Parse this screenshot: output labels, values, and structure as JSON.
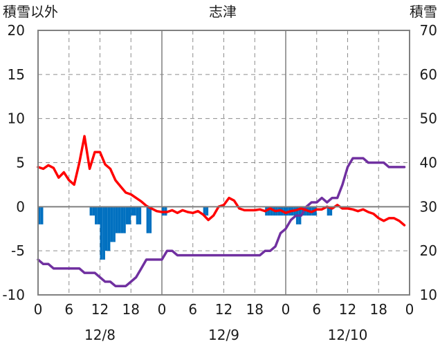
{
  "chart_data": {
    "type": "bar+line",
    "title": "志津",
    "left_axis_label": "積雪以外",
    "right_axis_label": "積雪",
    "left_ylim": [
      -10,
      20
    ],
    "right_ylim": [
      10,
      70
    ],
    "left_ticks": [
      "20",
      "15",
      "10",
      "5",
      "0",
      "-5",
      "-10"
    ],
    "right_ticks": [
      "70",
      "60",
      "50",
      "40",
      "30",
      "20",
      "10"
    ],
    "x_hours_total": 72,
    "x_tick_labels": [
      "0",
      "6",
      "12",
      "18",
      "0",
      "6",
      "12",
      "18",
      "0",
      "6",
      "12",
      "18",
      "0"
    ],
    "date_labels": [
      "12/8",
      "12/9",
      "12/10"
    ],
    "grid": "vertical dashed every 6h, solid at day boundaries; horizontal dashed every 5 units",
    "colors": {
      "bars": "#0070c0",
      "line_red": "#ff0000",
      "line_purple": "#7030a0"
    },
    "series": [
      {
        "kind": "bar",
        "axis": "left",
        "color": "#0070c0",
        "x": [
          0.5,
          1,
          10.5,
          11,
          11.5,
          12,
          12.5,
          13,
          13.5,
          14,
          14.5,
          15,
          15.5,
          16,
          16.5,
          17,
          17.5,
          18,
          18.5,
          19,
          19.5,
          20,
          21.5,
          22,
          24.5,
          25,
          32.5,
          33,
          44.5,
          45,
          45.5,
          46,
          46.5,
          47,
          47.5,
          48,
          48.5,
          49,
          49.5,
          50,
          50.5,
          51,
          51.5,
          52,
          52.5,
          53,
          53.5,
          54,
          56.5,
          57
        ],
        "values": [
          -2,
          -2,
          -1,
          -1,
          -2,
          -2,
          -6,
          -6,
          -5,
          -5,
          -4,
          -4,
          -3,
          -3,
          -3,
          -3,
          -2,
          -2,
          -1,
          -1,
          -2,
          -2,
          -3,
          -3,
          -1,
          -1,
          -1,
          -1,
          -1,
          -1,
          -1,
          -1,
          -1,
          -1,
          -1,
          -1,
          -1,
          -1,
          -1,
          -1,
          -2,
          -2,
          -1,
          -1,
          -1,
          -1,
          -1,
          -1,
          -1,
          -1
        ]
      },
      {
        "kind": "line",
        "axis": "left",
        "color": "#ff0000",
        "x": [
          0,
          1,
          2,
          3,
          4,
          5,
          6,
          7,
          8,
          9,
          10,
          11,
          12,
          13,
          14,
          15,
          16,
          17,
          18,
          19,
          20,
          21,
          22,
          23,
          24,
          25,
          26,
          27,
          28,
          29,
          30,
          31,
          32,
          33,
          34,
          35,
          36,
          37,
          38,
          39,
          40,
          41,
          42,
          43,
          44,
          45,
          46,
          47,
          48,
          49,
          50,
          51,
          52,
          53,
          54,
          55,
          56,
          57,
          58,
          59,
          60,
          61,
          62,
          63,
          64,
          65,
          66,
          67,
          68,
          69,
          70,
          71
        ],
        "values": [
          4.5,
          4.3,
          4.7,
          4.4,
          3.3,
          3.9,
          3.0,
          2.5,
          5.0,
          8.0,
          4.3,
          6.2,
          6.2,
          4.8,
          4.3,
          3.0,
          2.3,
          1.6,
          1.4,
          1.0,
          0.6,
          0.1,
          -0.2,
          -0.5,
          -0.6,
          -0.6,
          -0.4,
          -0.7,
          -0.4,
          -0.6,
          -0.7,
          -0.5,
          -0.9,
          -1.5,
          -1.0,
          0,
          0.2,
          1.0,
          0.7,
          -0.2,
          -0.4,
          -0.4,
          -0.4,
          -0.3,
          -0.5,
          -0.2,
          -0.5,
          -0.4,
          -0.7,
          -0.5,
          -0.4,
          -0.2,
          -0.4,
          -0.6,
          -0.3,
          -0.3,
          0,
          -0.2,
          0.2,
          -0.2,
          -0.2,
          -0.3,
          -0.5,
          -0.3,
          -0.6,
          -0.8,
          -1.3,
          -1.6,
          -1.3,
          -1.3,
          -1.6,
          -2.1
        ]
      },
      {
        "kind": "line",
        "axis": "right",
        "color": "#7030a0",
        "x": [
          0,
          1,
          2,
          3,
          4,
          5,
          6,
          7,
          8,
          9,
          10,
          11,
          12,
          13,
          14,
          15,
          16,
          17,
          18,
          19,
          20,
          21,
          22,
          23,
          24,
          25,
          26,
          27,
          28,
          29,
          30,
          31,
          32,
          33,
          34,
          35,
          36,
          37,
          38,
          39,
          40,
          41,
          42,
          43,
          44,
          45,
          46,
          47,
          48,
          49,
          50,
          51,
          52,
          53,
          54,
          55,
          56,
          57,
          58,
          59,
          60,
          61,
          62,
          63,
          64,
          65,
          66,
          67,
          68,
          69,
          70,
          71
        ],
        "values": [
          18,
          17,
          17,
          16,
          16,
          16,
          16,
          16,
          16,
          15,
          15,
          15,
          14,
          13,
          13,
          12,
          12,
          12,
          13,
          14,
          16,
          18,
          18,
          18,
          18,
          20,
          20,
          19,
          19,
          19,
          19,
          19,
          19,
          19,
          19,
          19,
          19,
          19,
          19,
          19,
          19,
          19,
          19,
          19,
          20,
          20,
          21,
          24,
          25,
          27,
          28,
          28,
          30,
          31,
          31,
          32,
          31,
          32,
          32,
          35,
          39,
          41,
          41,
          41,
          40,
          40,
          40,
          40,
          39,
          39,
          39,
          39
        ]
      }
    ]
  }
}
